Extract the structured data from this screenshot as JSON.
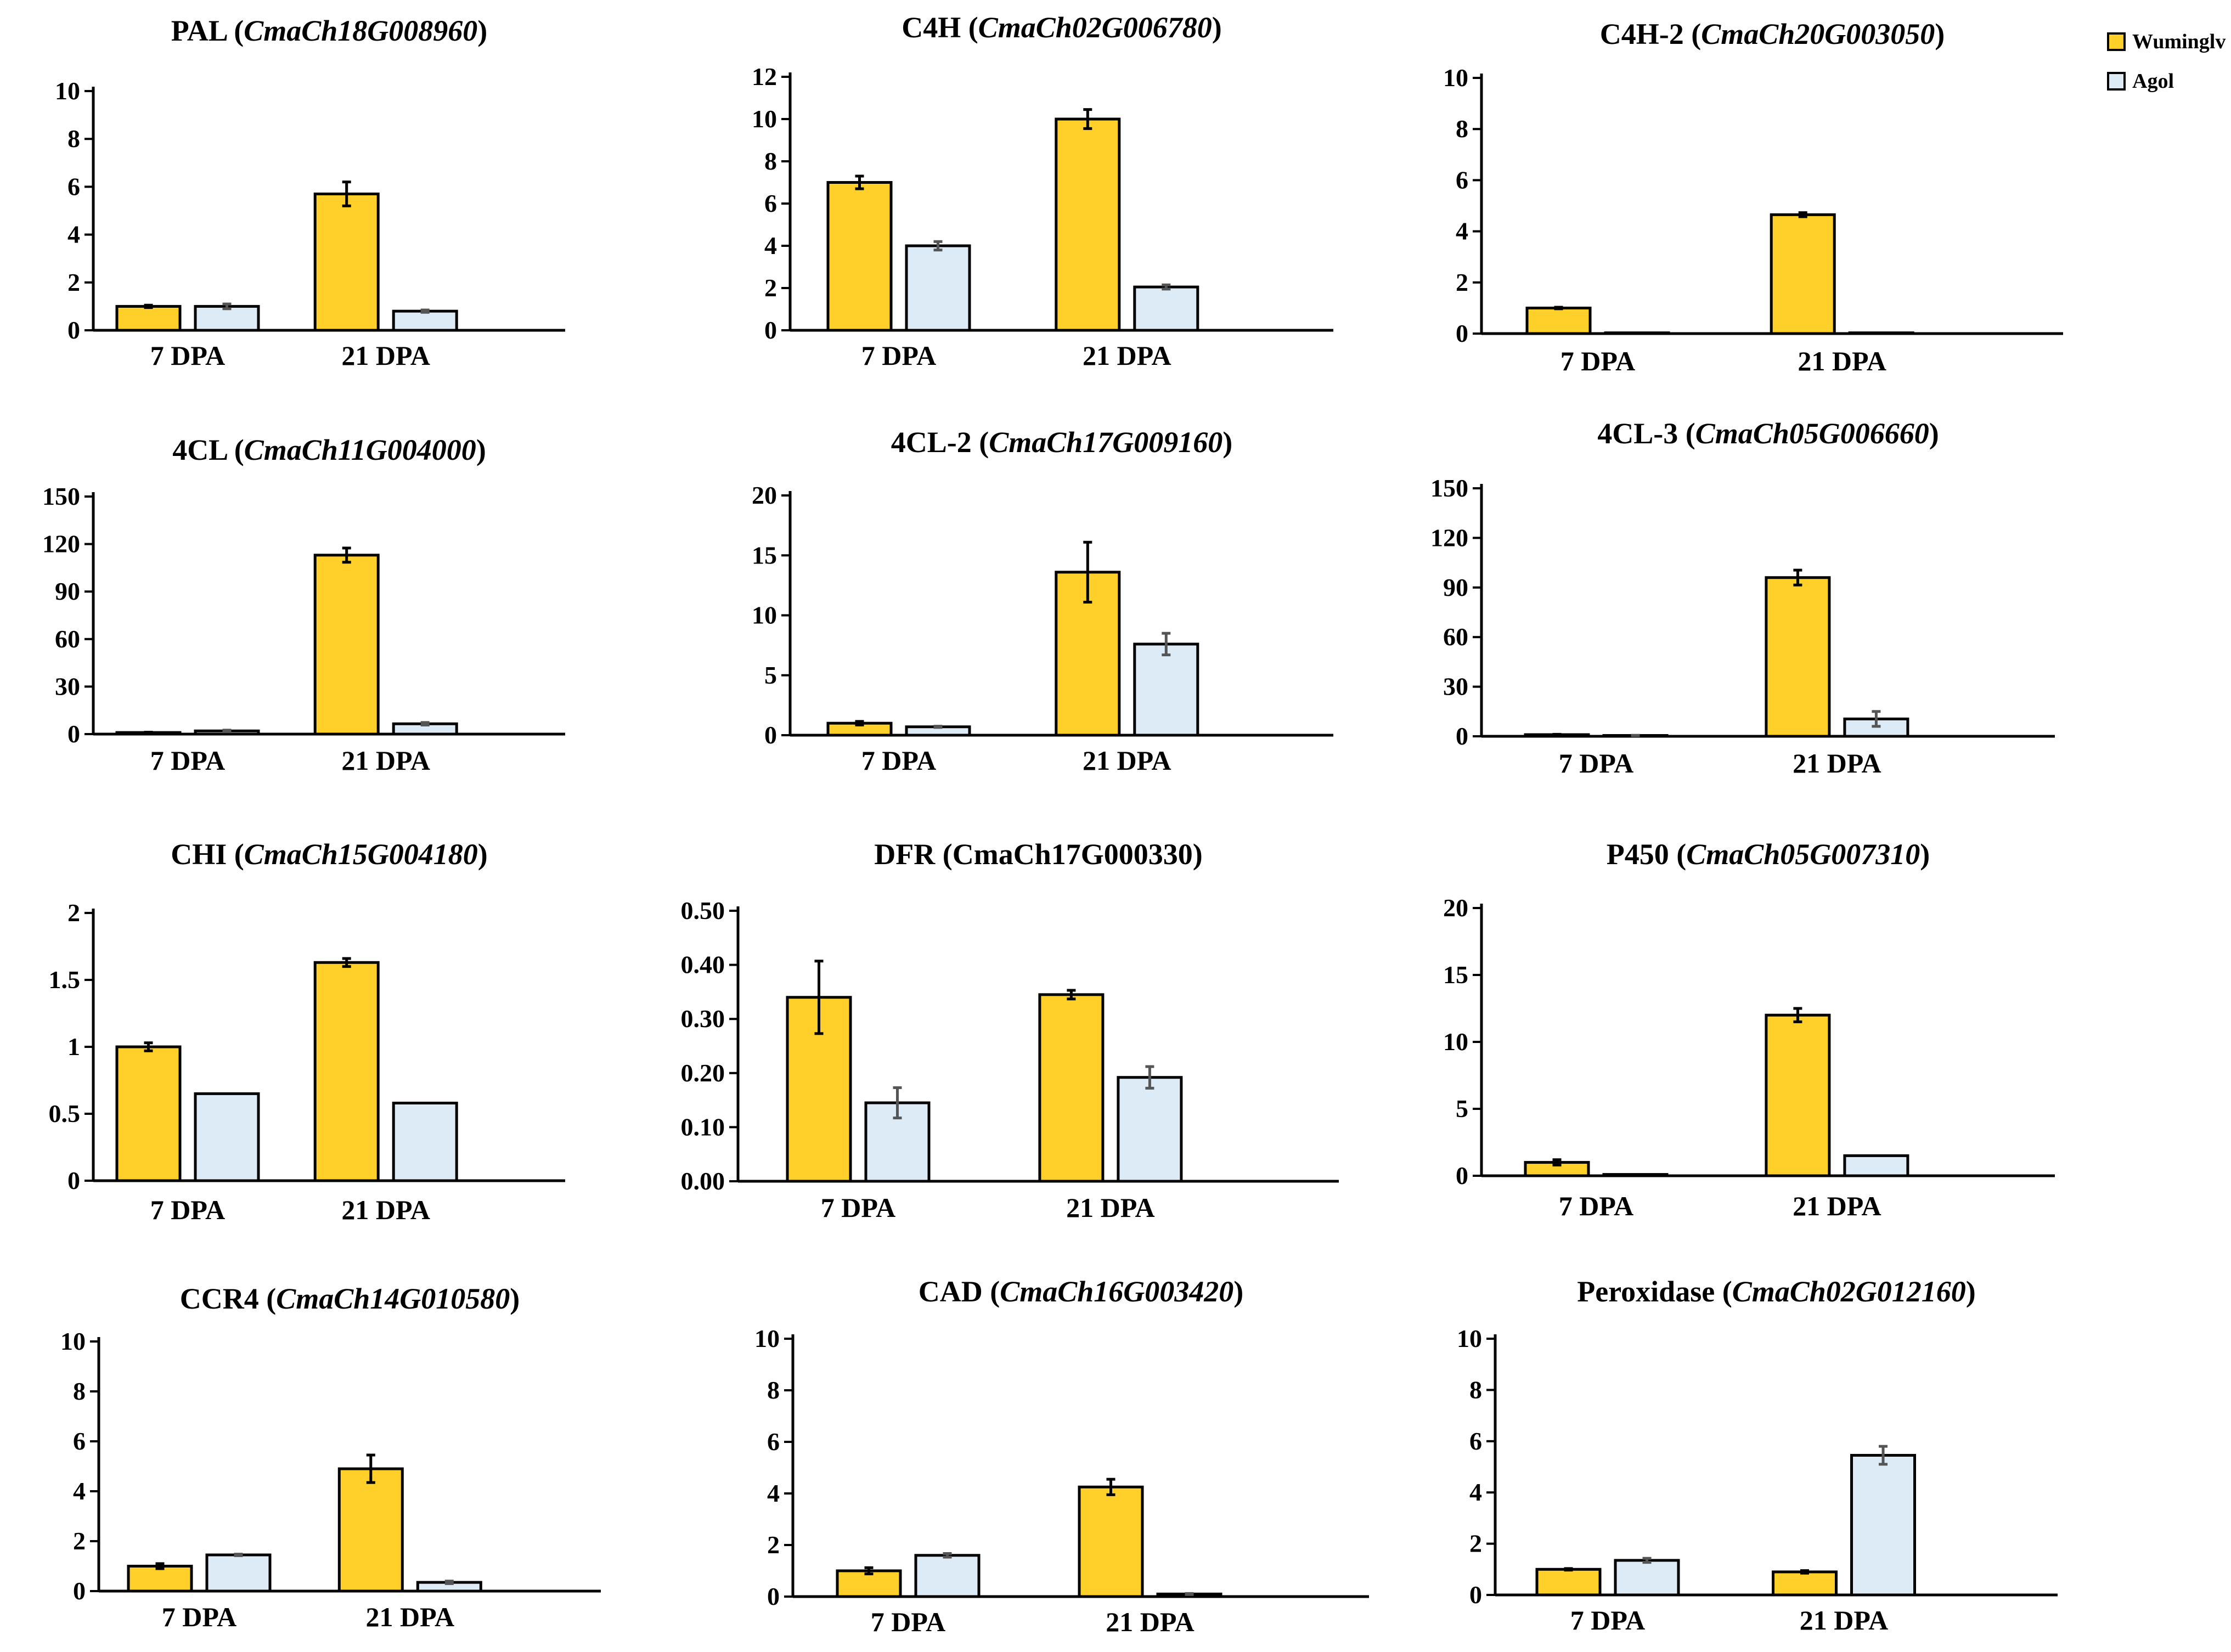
{
  "colors": {
    "wuminglv": "#FFD02A",
    "agol": "#DDEBF7",
    "axis": "#000000"
  },
  "legend": [
    {
      "name": "Wuminglv",
      "color": "#FFD02A"
    },
    {
      "name": "Agol",
      "color": "#DDEBF7"
    }
  ],
  "chart_data": [
    {
      "type": "bar",
      "gene": "PAL",
      "gene_id": "CmaCh18G008960",
      "italic_id": true,
      "categories": [
        "7 DPA",
        "21 DPA"
      ],
      "ylim": [
        0,
        10
      ],
      "yticks": [
        "0",
        "2",
        "4",
        "6",
        "8",
        "10"
      ],
      "series": [
        {
          "name": "Wuminglv",
          "values": [
            1.0,
            5.7
          ],
          "errors": [
            0.05,
            0.5
          ]
        },
        {
          "name": "Agol",
          "values": [
            1.0,
            0.8
          ],
          "errors": [
            0.1,
            0.05
          ]
        }
      ]
    },
    {
      "type": "bar",
      "gene": "C4H",
      "gene_id": "CmaCh02G006780",
      "italic_id": true,
      "categories": [
        "7 DPA",
        "21 DPA"
      ],
      "ylim": [
        0,
        12
      ],
      "yticks": [
        "0",
        "2",
        "4",
        "6",
        "8",
        "10",
        "12"
      ],
      "series": [
        {
          "name": "Wuminglv",
          "values": [
            7.0,
            10.0
          ],
          "errors": [
            0.3,
            0.45
          ]
        },
        {
          "name": "Agol",
          "values": [
            4.0,
            2.05
          ],
          "errors": [
            0.2,
            0.1
          ]
        }
      ]
    },
    {
      "type": "bar",
      "gene": "C4H-2",
      "gene_id": "CmaCh20G003050",
      "italic_id": true,
      "categories": [
        "7 DPA",
        "21 DPA"
      ],
      "ylim": [
        0,
        10
      ],
      "yticks": [
        "0",
        "2",
        "4",
        "6",
        "8",
        "10"
      ],
      "series": [
        {
          "name": "Wuminglv",
          "values": [
            1.0,
            4.65
          ],
          "errors": [
            0.03,
            0.08
          ]
        },
        {
          "name": "Agol",
          "values": [
            0.03,
            0.03
          ],
          "errors": [
            0,
            0
          ]
        }
      ]
    },
    {
      "type": "bar",
      "gene": "4CL",
      "gene_id": "CmaCh11G004000",
      "italic_id": true,
      "categories": [
        "7 DPA",
        "21 DPA"
      ],
      "ylim": [
        0,
        150
      ],
      "yticks": [
        "0",
        "30",
        "60",
        "90",
        "120",
        "150"
      ],
      "series": [
        {
          "name": "Wuminglv",
          "values": [
            1.0,
            113
          ],
          "errors": [
            0.2,
            4.5
          ]
        },
        {
          "name": "Agol",
          "values": [
            2.0,
            6.5
          ],
          "errors": [
            0.5,
            0.8
          ]
        }
      ]
    },
    {
      "type": "bar",
      "gene": "4CL-2",
      "gene_id": "CmaCh17G009160",
      "italic_id": true,
      "categories": [
        "7 DPA",
        "21 DPA"
      ],
      "ylim": [
        0,
        20
      ],
      "yticks": [
        "0",
        "5",
        "10",
        "15",
        "20"
      ],
      "series": [
        {
          "name": "Wuminglv",
          "values": [
            1.0,
            13.6
          ],
          "errors": [
            0.15,
            2.5
          ]
        },
        {
          "name": "Agol",
          "values": [
            0.7,
            7.6
          ],
          "errors": [
            0.05,
            0.9
          ]
        }
      ]
    },
    {
      "type": "bar",
      "gene": "4CL-3",
      "gene_id": "CmaCh05G006660",
      "italic_id": true,
      "categories": [
        "7 DPA",
        "21 DPA"
      ],
      "ylim": [
        0,
        150
      ],
      "yticks": [
        "0",
        "30",
        "60",
        "90",
        "120",
        "150"
      ],
      "series": [
        {
          "name": "Wuminglv",
          "values": [
            1.0,
            96
          ],
          "errors": [
            0.2,
            4.5
          ]
        },
        {
          "name": "Agol",
          "values": [
            0.5,
            10.5
          ],
          "errors": [
            0.1,
            4.5
          ]
        }
      ]
    },
    {
      "type": "bar",
      "gene": "CHI",
      "gene_id": "CmaCh15G004180",
      "italic_id": true,
      "categories": [
        "7 DPA",
        "21 DPA"
      ],
      "ylim": [
        0,
        2
      ],
      "yticks": [
        "0",
        "0.5",
        "1",
        "1.5",
        "2"
      ],
      "series": [
        {
          "name": "Wuminglv",
          "values": [
            1.0,
            1.63
          ],
          "errors": [
            0.03,
            0.03
          ]
        },
        {
          "name": "Agol",
          "values": [
            0.65,
            0.58
          ],
          "errors": [
            0,
            0
          ]
        }
      ]
    },
    {
      "type": "bar",
      "gene": "DFR",
      "gene_id": "CmaCh17G000330",
      "italic_id": false,
      "categories": [
        "7 DPA",
        "21 DPA"
      ],
      "ylim": [
        0,
        0.5
      ],
      "yticks": [
        "0.00",
        "0.10",
        "0.20",
        "0.30",
        "0.40",
        "0.50"
      ],
      "series": [
        {
          "name": "Wuminglv",
          "values": [
            0.34,
            0.345
          ],
          "errors": [
            0.067,
            0.008
          ]
        },
        {
          "name": "Agol",
          "values": [
            0.145,
            0.192
          ],
          "errors": [
            0.028,
            0.02
          ]
        }
      ]
    },
    {
      "type": "bar",
      "gene": "P450",
      "gene_id": "CmaCh05G007310",
      "italic_id": true,
      "categories": [
        "7 DPA",
        "21 DPA"
      ],
      "ylim": [
        0,
        20
      ],
      "yticks": [
        "0",
        "5",
        "10",
        "15",
        "20"
      ],
      "series": [
        {
          "name": "Wuminglv",
          "values": [
            1.0,
            12.0
          ],
          "errors": [
            0.2,
            0.5
          ]
        },
        {
          "name": "Agol",
          "values": [
            0.1,
            1.5
          ],
          "errors": [
            0,
            0
          ]
        }
      ]
    },
    {
      "type": "bar",
      "gene": "CCR4",
      "gene_id": "CmaCh14G010580",
      "italic_id": true,
      "categories": [
        "7 DPA",
        "21 DPA"
      ],
      "ylim": [
        0,
        10
      ],
      "yticks": [
        "0",
        "2",
        "4",
        "6",
        "8",
        "10"
      ],
      "series": [
        {
          "name": "Wuminglv",
          "values": [
            1.0,
            4.9
          ],
          "errors": [
            0.1,
            0.55
          ]
        },
        {
          "name": "Agol",
          "values": [
            1.45,
            0.35
          ],
          "errors": [
            0.03,
            0.05
          ]
        }
      ]
    },
    {
      "type": "bar",
      "gene": "CAD",
      "gene_id": "CmaCh16G003420",
      "italic_id": true,
      "categories": [
        "7 DPA",
        "21 DPA"
      ],
      "ylim": [
        0,
        10
      ],
      "yticks": [
        "0",
        "2",
        "4",
        "6",
        "8",
        "10"
      ],
      "series": [
        {
          "name": "Wuminglv",
          "values": [
            1.0,
            4.25
          ],
          "errors": [
            0.12,
            0.3
          ]
        },
        {
          "name": "Agol",
          "values": [
            1.6,
            0.1
          ],
          "errors": [
            0.07,
            0.02
          ]
        }
      ]
    },
    {
      "type": "bar",
      "gene": "Peroxidase",
      "gene_id": "CmaCh02G012160",
      "italic_id": true,
      "categories": [
        "7 DPA",
        "21 DPA"
      ],
      "ylim": [
        0,
        10
      ],
      "yticks": [
        "0",
        "2",
        "4",
        "6",
        "8",
        "10"
      ],
      "series": [
        {
          "name": "Wuminglv",
          "values": [
            1.0,
            0.9
          ],
          "errors": [
            0.03,
            0.05
          ]
        },
        {
          "name": "Agol",
          "values": [
            1.35,
            5.45
          ],
          "errors": [
            0.08,
            0.35
          ]
        }
      ]
    }
  ]
}
